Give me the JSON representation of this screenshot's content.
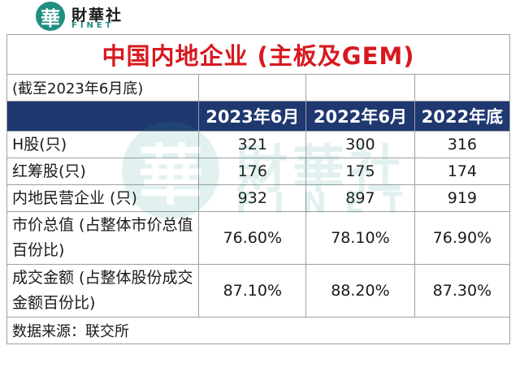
{
  "logo": {
    "mark": "華",
    "cn": "財華社",
    "en": "FINET"
  },
  "watermark": {
    "mark": "華",
    "cn": "財華社",
    "en": "FINET"
  },
  "table": {
    "title": "中国内地企业 (主板及GEM)",
    "as_of": "(截至2023年6月底)",
    "columns": [
      "2023年6月",
      "2022年6月",
      "2022年底"
    ],
    "rows": [
      {
        "label": "H股(只)",
        "values": [
          "321",
          "300",
          "316"
        ]
      },
      {
        "label": "红筹股(只)",
        "values": [
          "176",
          "175",
          "174"
        ]
      },
      {
        "label": "内地民营企业 (只)",
        "values": [
          "932",
          "897",
          "919"
        ]
      },
      {
        "label": "市价总值 (占整体市价总值百份比)",
        "values": [
          "76.60%",
          "78.10%",
          "76.90%"
        ]
      },
      {
        "label": "成交金额 (占整体股份成交金额百份比)",
        "values": [
          "87.10%",
          "88.20%",
          "87.30%"
        ]
      }
    ],
    "source": "数据来源：联交所"
  },
  "colors": {
    "title_red": "#d7191f",
    "header_navy": "#1f3870",
    "brand_teal": "#1f8f82"
  }
}
